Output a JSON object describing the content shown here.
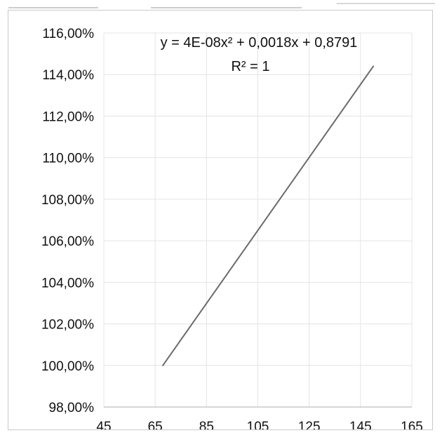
{
  "chart_data": {
    "type": "line",
    "title": "",
    "xlabel": "",
    "ylabel": "",
    "xlim": [
      45,
      165
    ],
    "ylim": [
      0.98,
      1.16
    ],
    "x_ticks": [
      "45",
      "65",
      "85",
      "105",
      "125",
      "145",
      "165"
    ],
    "y_ticks": [
      "98,00%",
      "100,00%",
      "102,00%",
      "104,00%",
      "106,00%",
      "108,00%",
      "110,00%",
      "112,00%",
      "114,00%",
      "116,00%"
    ],
    "grid": true,
    "legend": "none",
    "series": [
      {
        "x": [
          68,
          150
        ],
        "y": [
          1.0,
          1.144
        ]
      }
    ],
    "annotations": [
      "y = 4E-08x² + 0,0018x + 0,8791",
      "R² = 1"
    ],
    "colors": {
      "line": "#6b6b6b",
      "grid": "#e4e4e4",
      "axis": "#bdbdbd",
      "text": "#111111"
    }
  }
}
